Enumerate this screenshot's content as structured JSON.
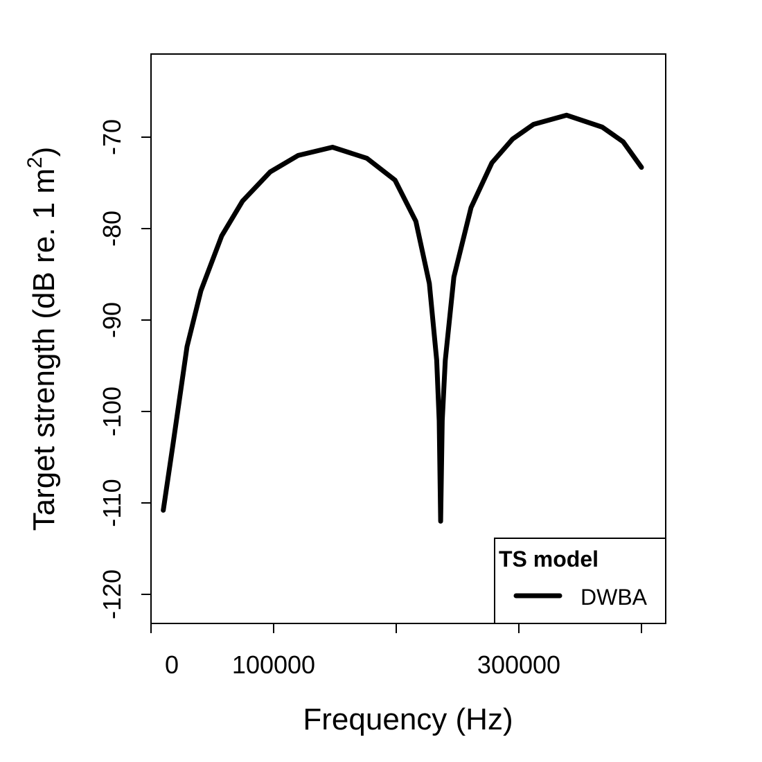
{
  "chart_data": {
    "type": "line",
    "title": "",
    "xlabel": "Frequency (Hz)",
    "ylabel_main": "Target strength (dB re. 1 m",
    "ylabel_sup": "2",
    "ylabel_close": ")",
    "xlim": [
      0,
      420000
    ],
    "ylim": [
      -123.2,
      -60.9
    ],
    "xticks": [
      0,
      100000,
      200000,
      300000,
      400000
    ],
    "xtick_labels": [
      "0",
      "100000",
      "",
      "300000",
      ""
    ],
    "yticks": [
      -70,
      -80,
      -90,
      -100,
      -110,
      -120
    ],
    "ytick_labels": [
      "-70",
      "-80",
      "-90",
      "-100",
      "-110",
      "-120"
    ],
    "grid": false,
    "legend": {
      "title": "TS model",
      "placement": "bottom-right",
      "entries": [
        "DWBA"
      ]
    },
    "series": [
      {
        "name": "DWBA",
        "color": "#000000",
        "x": [
          10000,
          18000,
          29400,
          40700,
          57600,
          74600,
          97200,
          120000,
          148000,
          176000,
          199000,
          216000,
          227000,
          233000,
          235000,
          236200,
          237500,
          240000,
          247000,
          261000,
          278000,
          295000,
          312000,
          339000,
          368000,
          385000,
          400000
        ],
        "y": [
          -110.8,
          -103.5,
          -92.9,
          -86.8,
          -80.8,
          -77.0,
          -73.8,
          -72.0,
          -71.1,
          -72.3,
          -74.7,
          -79.2,
          -86.0,
          -94.4,
          -101.0,
          -112.0,
          -101.0,
          -94.4,
          -85.3,
          -77.7,
          -72.8,
          -70.2,
          -68.6,
          -67.6,
          -68.9,
          -70.5,
          -73.3
        ]
      }
    ]
  }
}
